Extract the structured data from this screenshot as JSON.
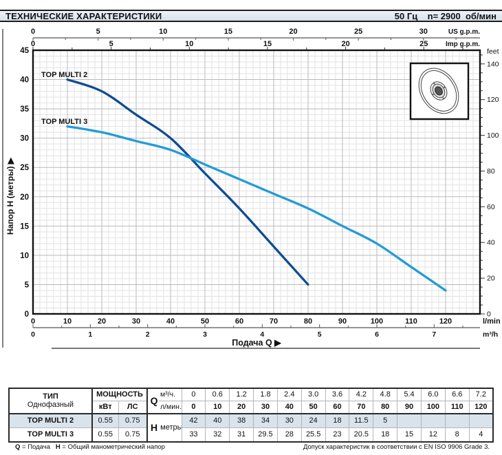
{
  "header": {
    "title": "ТЕХНИЧЕСКИЕ ХАРАКТЕРИСТИКИ",
    "frequency_speed": "50 Гц    n= 2900  об/мин"
  },
  "chart_data": {
    "type": "line",
    "title": "",
    "xlabel": "Подача Q ▶",
    "ylabel": "Напор H (метры) ▶",
    "grid": "on",
    "x_axis_lmin": {
      "unit": "l/min",
      "min": 0,
      "max": 130,
      "ticks": [
        0,
        10,
        20,
        30,
        40,
        50,
        60,
        70,
        80,
        90,
        100,
        110,
        120
      ]
    },
    "x_axis_m3h": {
      "unit": "m³/h",
      "ticks": [
        0,
        1,
        2,
        3,
        4,
        5,
        6,
        7
      ]
    },
    "x_axis_usgpm": {
      "unit": "US g.p.m.",
      "ticks": [
        0,
        5,
        10,
        15,
        20,
        25,
        30
      ]
    },
    "x_axis_impgpm": {
      "unit": "Imp g.p.m.",
      "ticks": [
        0,
        5,
        10,
        15,
        20,
        25
      ]
    },
    "y_axis_m": {
      "unit": "метры",
      "min": 0,
      "max": 45,
      "ticks": [
        0,
        5,
        10,
        15,
        20,
        25,
        30,
        35,
        40,
        45
      ]
    },
    "y_axis_feet": {
      "unit": "feet",
      "ticks": [
        0,
        20,
        40,
        60,
        80,
        100,
        120,
        140
      ]
    },
    "series": [
      {
        "name": "TOP MULTI 2",
        "color": "#0e4c92",
        "x": [
          10,
          20,
          30,
          40,
          50,
          60,
          70,
          80
        ],
        "y": [
          40,
          38,
          34,
          30,
          24,
          18,
          11.5,
          5
        ]
      },
      {
        "name": "TOP MULTI 3",
        "color": "#219bd8",
        "x": [
          10,
          20,
          30,
          40,
          50,
          60,
          70,
          80,
          90,
          100,
          110,
          120
        ],
        "y": [
          32,
          31,
          29.5,
          28,
          25.5,
          23,
          20.5,
          18,
          15,
          12,
          8,
          4
        ]
      }
    ],
    "legend_position": "curve-start-labels",
    "inset_icon": "impeller-icon"
  },
  "table": {
    "type_header": "ТИП",
    "type_sub": "Однофазный",
    "power_header": "МОЩНОСТЬ",
    "kw_label": "кВт",
    "hp_label": "ЛС",
    "q_label": "Q",
    "m3h_label": "м³/ч.",
    "lmin_label": "л/мин.",
    "h_label": "H",
    "h_unit": "метры",
    "m3h_values": [
      "0",
      "0.6",
      "1.2",
      "1.8",
      "2.4",
      "3.0",
      "3.6",
      "4.2",
      "4.8",
      "5.4",
      "6.0",
      "6.6",
      "7.2"
    ],
    "lmin_values": [
      "0",
      "10",
      "20",
      "30",
      "40",
      "50",
      "60",
      "70",
      "80",
      "90",
      "100",
      "110",
      "120"
    ],
    "rows": [
      {
        "name": "TOP MULTI 2",
        "kw": "0.55",
        "hp": "0.75",
        "highlight": true,
        "h": [
          "42",
          "40",
          "38",
          "34",
          "30",
          "24",
          "18",
          "11.5",
          "5",
          "",
          "",
          "",
          ""
        ]
      },
      {
        "name": "TOP MULTI 3",
        "kw": "0.55",
        "hp": "0.75",
        "highlight": false,
        "h": [
          "33",
          "32",
          "31",
          "29.5",
          "28",
          "25.5",
          "23",
          "20.5",
          "18",
          "15",
          "12",
          "8",
          "4"
        ]
      }
    ]
  },
  "footer": {
    "q_bold": "Q",
    "q_rest": " = Подача",
    "h_bold": "H",
    "h_rest": " = Общий манометрический напор",
    "right": "Допуск характеристик в соответствии с EN ISO 9906 Grade 3."
  }
}
